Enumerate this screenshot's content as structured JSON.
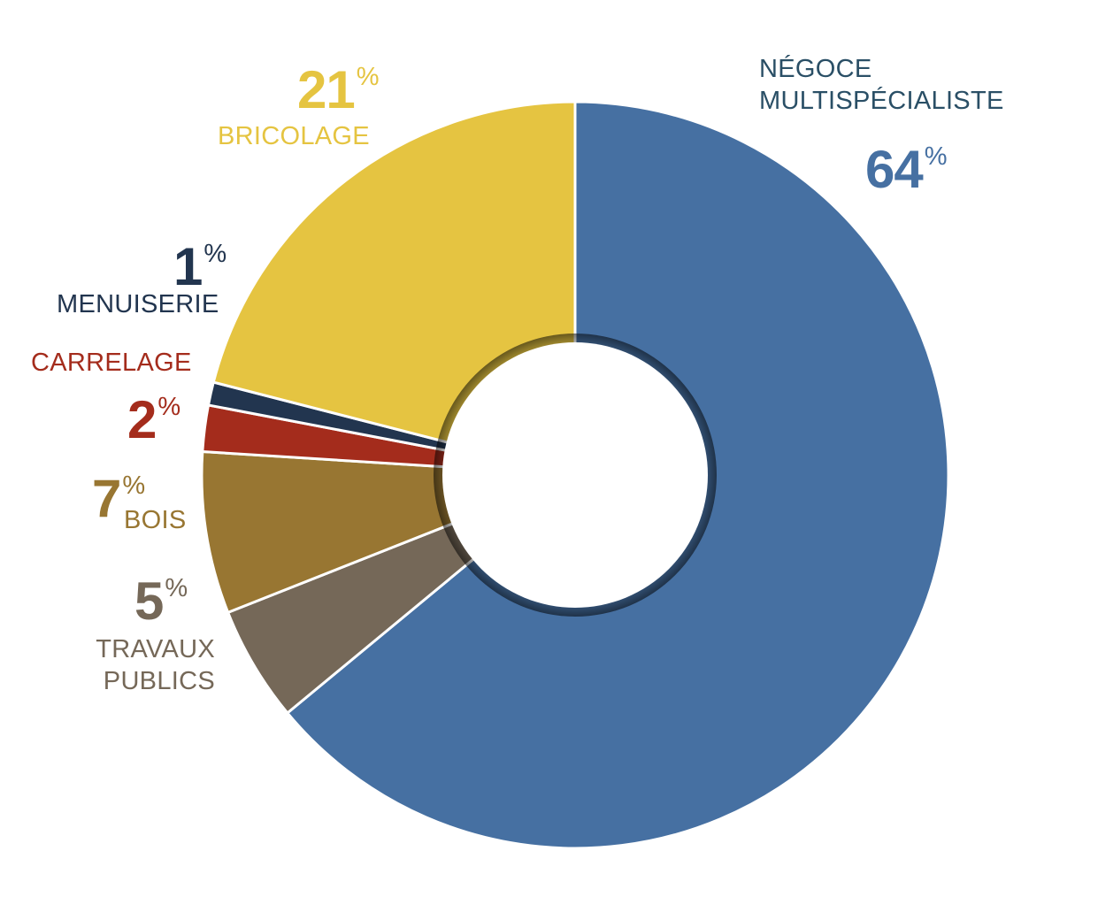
{
  "chart_data": {
    "type": "pie",
    "variant": "donut",
    "start": "top",
    "direction": "clockwise",
    "percent_sign": "%",
    "series": [
      {
        "name": "NÉGOCE MULTISPÉCIALISTE",
        "label_lines": [
          "NÉGOCE",
          "MULTISPÉCIALISTE"
        ],
        "value": 64,
        "shown_value": "64",
        "color": "#4670A2"
      },
      {
        "name": "TRAVAUX PUBLICS",
        "label_lines": [
          "TRAVAUX",
          "PUBLICS"
        ],
        "value": 5,
        "shown_value": "5",
        "color": "#756858"
      },
      {
        "name": "BOIS",
        "label_lines": [
          "BOIS"
        ],
        "value": 7,
        "shown_value": "7",
        "color": "#987632"
      },
      {
        "name": "CARRELAGE",
        "label_lines": [
          "CARRELAGE"
        ],
        "value": 2,
        "shown_value": "2",
        "color": "#A42C1C"
      },
      {
        "name": "MENUISERIE",
        "label_lines": [
          "MENUISERIE"
        ],
        "value": 1,
        "shown_value": "1",
        "color": "#22354F"
      },
      {
        "name": "BRICOLAGE",
        "label_lines": [
          "BRICOLAGE"
        ],
        "value": 21,
        "shown_value": "21",
        "color": "#E5C441"
      }
    ]
  }
}
